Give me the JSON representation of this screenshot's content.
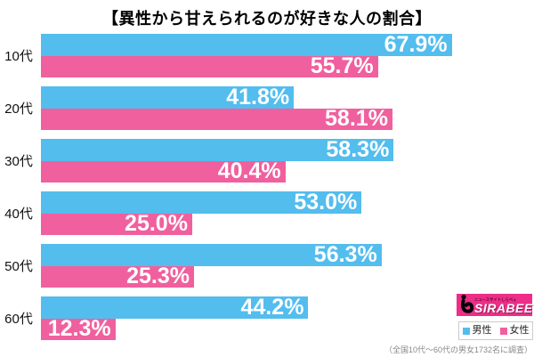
{
  "title": "【異性から甘えられるのが好きな人の割合】",
  "chart_data": {
    "type": "bar",
    "orientation": "horizontal",
    "title": "【異性から甘えられるのが好きな人の割合】",
    "categories": [
      "10代",
      "20代",
      "30代",
      "40代",
      "50代",
      "60代"
    ],
    "series": [
      {
        "name": "男性",
        "color": "#53BDEE",
        "values": [
          67.9,
          41.8,
          58.3,
          53.0,
          56.3,
          44.2
        ],
        "labels": [
          "67.9%",
          "41.8%",
          "58.3%",
          "53.0%",
          "56.3%",
          "44.2%"
        ]
      },
      {
        "name": "女性",
        "color": "#F0609E",
        "values": [
          55.7,
          58.1,
          40.4,
          25.0,
          25.3,
          12.3
        ],
        "labels": [
          "55.7%",
          "58.1%",
          "40.4%",
          "25.0%",
          "25.3%",
          "12.3%"
        ]
      }
    ],
    "value_suffix": "%",
    "xlim": [
      0,
      81.5
    ],
    "grid": false,
    "legend_position": "bottom-right",
    "value_label_color": "#ffffff"
  },
  "legend": {
    "items": [
      {
        "label": "男性",
        "color": "#53BDEE"
      },
      {
        "label": "女性",
        "color": "#F0609E"
      }
    ]
  },
  "footnote": "（全国10代～60代の男女1732名に調査）",
  "logo": {
    "brand": "SIRABEE",
    "tagline": "ニュースサイトしらべぇ",
    "bg_color": "#ED2D88"
  }
}
